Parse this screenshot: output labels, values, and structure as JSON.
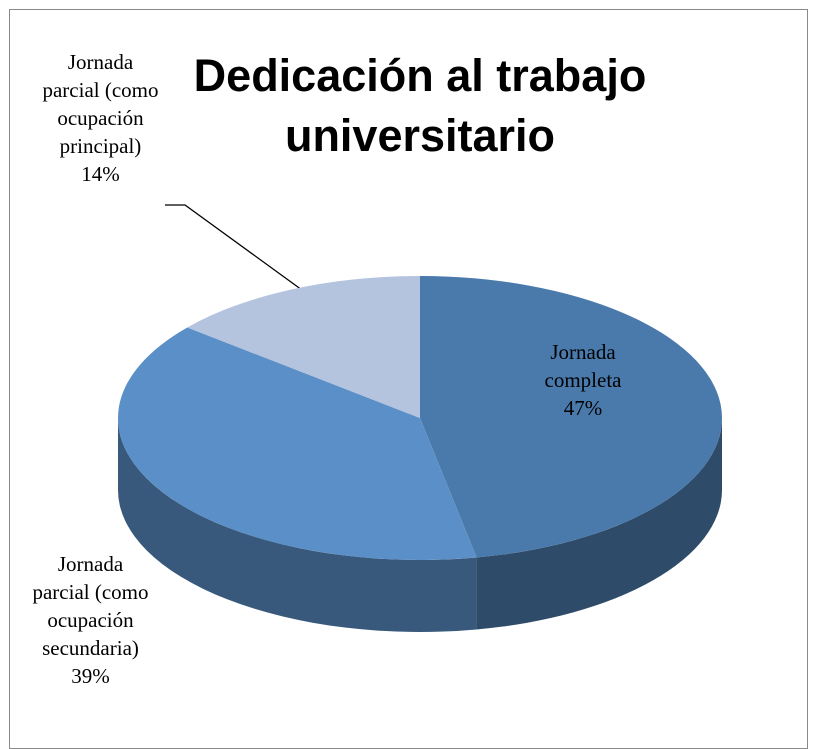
{
  "chart_data": {
    "type": "pie",
    "title": "Dedicación al trabajo universitario",
    "categories": [
      "Jornada completa",
      "Jornada parcial (como ocupación secundaria)",
      "Jornada parcial (como ocupación principal)"
    ],
    "values": [
      47,
      39,
      14
    ],
    "value_labels": [
      "47%",
      "39%",
      "14%"
    ],
    "colors": [
      "#4a7aab",
      "#5b8fc7",
      "#b4c3de"
    ]
  }
}
